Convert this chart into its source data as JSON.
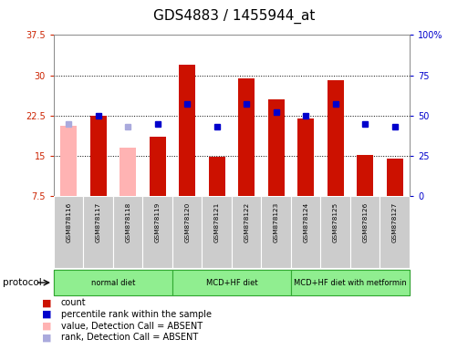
{
  "title": "GDS4883 / 1455944_at",
  "samples": [
    "GSM878116",
    "GSM878117",
    "GSM878118",
    "GSM878119",
    "GSM878120",
    "GSM878121",
    "GSM878122",
    "GSM878123",
    "GSM878124",
    "GSM878125",
    "GSM878126",
    "GSM878127"
  ],
  "count_values": [
    20.5,
    22.5,
    16.5,
    18.5,
    32.0,
    14.8,
    29.5,
    25.5,
    22.0,
    29.0,
    15.2,
    14.5
  ],
  "count_absent": [
    true,
    false,
    true,
    false,
    false,
    false,
    false,
    false,
    false,
    false,
    false,
    false
  ],
  "percentile_values_pct": [
    45,
    50,
    43,
    45,
    57,
    43,
    57,
    52,
    50,
    57,
    45,
    43
  ],
  "percentile_absent": [
    true,
    false,
    true,
    false,
    false,
    false,
    false,
    false,
    false,
    false,
    false,
    false
  ],
  "ylim": [
    7.5,
    37.5
  ],
  "yticks": [
    7.5,
    15.0,
    22.5,
    30.0,
    37.5
  ],
  "ytick_labels": [
    "7.5",
    "15",
    "22.5",
    "30",
    "37.5"
  ],
  "y2lim": [
    0,
    100
  ],
  "y2ticks": [
    0,
    25,
    50,
    75,
    100
  ],
  "y2tick_labels": [
    "0",
    "25",
    "50",
    "75",
    "100%"
  ],
  "grid_lines": [
    15.0,
    22.5,
    30.0
  ],
  "bar_color_present": "#CC1100",
  "bar_color_absent": "#FFB3B3",
  "dot_color_present": "#0000CC",
  "dot_color_absent": "#AAAADD",
  "protocol_ranges": [
    [
      0,
      3
    ],
    [
      4,
      7
    ],
    [
      8,
      11
    ]
  ],
  "protocol_labels": [
    "normal diet",
    "MCD+HF diet",
    "MCD+HF diet with metformin"
  ],
  "protocol_color": "#90EE90",
  "protocol_border": "#33AA33",
  "legend_items": [
    {
      "color": "#CC1100",
      "label": "count"
    },
    {
      "color": "#0000CC",
      "label": "percentile rank within the sample"
    },
    {
      "color": "#FFB3B3",
      "label": "value, Detection Call = ABSENT"
    },
    {
      "color": "#AAAADD",
      "label": "rank, Detection Call = ABSENT"
    }
  ],
  "title_fontsize": 11,
  "bar_width": 0.55
}
